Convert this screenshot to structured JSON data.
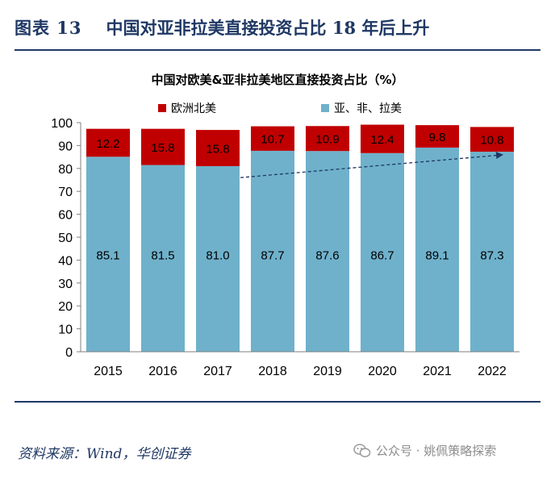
{
  "figure": {
    "label": "图表 13",
    "title": "中国对亚非拉美直接投资占比 18 年后上升"
  },
  "source": "资料来源：Wind，华创证券",
  "watermark": "公众号 · 姚佩策略探索",
  "colors": {
    "navy": "#1f3864",
    "europe_na": "#c00000",
    "asia_africa_latam": "#6fb1cb"
  },
  "chart_data": {
    "type": "bar",
    "stacked": true,
    "title": "中国对欧美&亚非拉美地区直接投资占比（%）",
    "categories": [
      "2015",
      "2016",
      "2017",
      "2018",
      "2019",
      "2020",
      "2021",
      "2022"
    ],
    "series": [
      {
        "name": "亚、非、拉美",
        "values": [
          85.1,
          81.5,
          81.0,
          87.7,
          87.6,
          86.7,
          89.1,
          87.3
        ],
        "color": "#6fb1cb"
      },
      {
        "name": "欧洲北美",
        "values": [
          12.2,
          15.8,
          15.8,
          10.7,
          10.9,
          12.4,
          9.8,
          10.8
        ],
        "color": "#c00000"
      }
    ],
    "legend": [
      "欧洲北美",
      "亚、非、拉美"
    ],
    "yticks": [
      0,
      10,
      20,
      30,
      40,
      50,
      60,
      70,
      80,
      90,
      100
    ],
    "ylim": [
      0,
      100
    ],
    "data_labels": {
      "asia": [
        "85.1",
        "81.5",
        "81.0",
        "87.7",
        "87.6",
        "86.7",
        "89.1",
        "87.3"
      ],
      "europe": [
        "12.2",
        "15.8",
        "15.8",
        "10.7",
        "10.9",
        "12.4",
        "9.8",
        "10.8"
      ]
    },
    "trend_arrow": {
      "from": {
        "category": "2017",
        "value": 76
      },
      "to": {
        "category": "2022",
        "value": 86
      }
    }
  }
}
